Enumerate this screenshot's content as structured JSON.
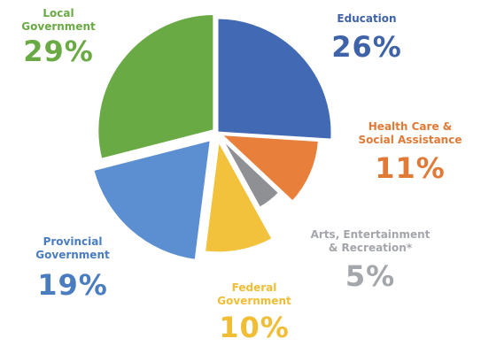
{
  "chart_data": {
    "type": "pie",
    "slices": [
      {
        "name": "Education",
        "value": 26,
        "label": "26%",
        "color": "#4169b4"
      },
      {
        "name": "Health Care & Social Assistance",
        "value": 11,
        "label": "11%",
        "color": "#e8803c"
      },
      {
        "name": "Arts, Entertainment & Recreation*",
        "value": 5,
        "label": "5%",
        "color": "#8e9094"
      },
      {
        "name": "Federal Government",
        "value": 10,
        "label": "10%",
        "color": "#f2c23c"
      },
      {
        "name": "Provincial Government",
        "value": 19,
        "label": "19%",
        "color": "#5b8fd2"
      },
      {
        "name": "Local Government",
        "value": 29,
        "label": "29%",
        "color": "#6aaa45"
      }
    ]
  },
  "labels": {
    "local": {
      "line1": "Local",
      "line2": "Government",
      "pct": "29%"
    },
    "edu": {
      "line1": "Education",
      "pct": "26%"
    },
    "health": {
      "line1": "Health Care &",
      "line2": "Social Assistance",
      "pct": "11%"
    },
    "arts": {
      "line1": "Arts, Entertainment",
      "line2": "& Recreation*",
      "pct": "5%"
    },
    "fed": {
      "line1": "Federal",
      "line2": "Government",
      "pct": "10%"
    },
    "prov": {
      "line1": "Provincial",
      "line2": "Government",
      "pct": "19%"
    }
  },
  "colors": {
    "local_text": "#6aaa45",
    "edu_text": "#3f63a8",
    "health_text": "#e07a36",
    "arts_text": "#a3a6aa",
    "fed_text": "#f0bd35",
    "prov_text": "#4a7cc0"
  }
}
